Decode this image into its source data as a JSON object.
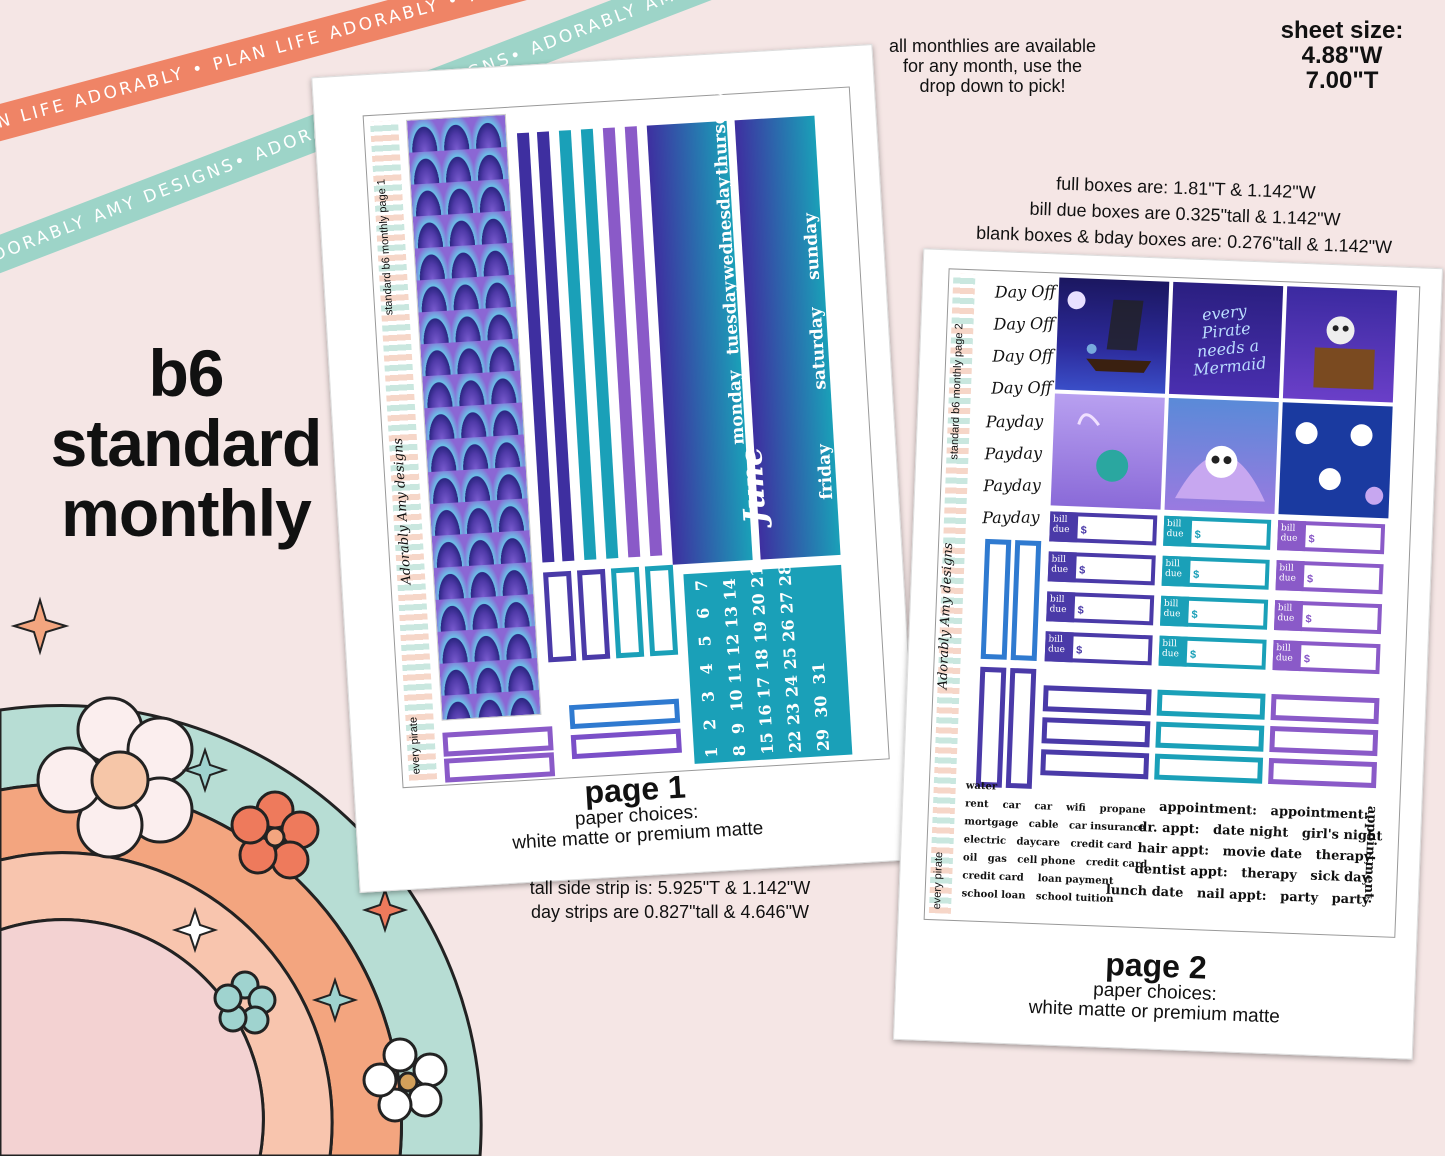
{
  "ribbons": {
    "top": "PLAN LIFE ADORABLY • PLAN LIFE ADORABLY • PLAN LIFE ADORABLY",
    "second": "ADORABLY AMY DESIGNS• ADORABLY AMY DESIGNS• ADORABLY AMY DESIGNS"
  },
  "product_title": [
    "b6",
    "standard",
    "monthly"
  ],
  "availability_note": [
    "all monthlies are available",
    "for any month, use the",
    "drop down to pick!"
  ],
  "sheet_size": {
    "label": "sheet size:",
    "width": "4.88\"W",
    "height": "7.00\"T"
  },
  "dimensions_note": [
    "full boxes are: 1.81\"T & 1.142\"W",
    "bill due boxes are 0.325\"tall & 1.142\"W",
    "blank boxes & bday boxes are: 0.276\"tall & 1.142\"W"
  ],
  "page1": {
    "side_label": "standard b6 monthly page 1",
    "theme_label": "every pirate",
    "brand_script": "Adorably Amy designs",
    "month_script": "June",
    "days_left": [
      "monday",
      "tuesday",
      "wednesday",
      "thursday"
    ],
    "days_right": [
      "friday",
      "saturday",
      "sunday"
    ],
    "calendar_rows": [
      [
        "1",
        "2",
        "3",
        "4",
        "5",
        "6",
        "7"
      ],
      [
        "8",
        "9",
        "10",
        "11",
        "12",
        "13",
        "14"
      ],
      [
        "15",
        "16",
        "17",
        "18",
        "19",
        "20",
        "21"
      ],
      [
        "22",
        "23",
        "24",
        "25",
        "26",
        "27",
        "28"
      ],
      [
        "29",
        "30",
        "31"
      ]
    ],
    "caption": "page 1",
    "paper_label": "paper choices:",
    "paper_options": "white matte or premium matte",
    "strip_dims": [
      "tall side strip is: 5.925\"T & 1.142\"W",
      "day strips are 0.827\"tall & 4.646\"W"
    ]
  },
  "page2": {
    "side_label": "standard b6 monthly page 2",
    "theme_label": "every pirate",
    "brand_script": "Adorably Amy designs",
    "script_labels": [
      "Day Off",
      "Day Off",
      "Day Off",
      "Day Off",
      "Payday",
      "Payday",
      "Payday",
      "Payday"
    ],
    "art_text": "every Pirate needs a Mermaid",
    "bill_label": [
      "bill",
      "due"
    ],
    "bill_symbol": "$",
    "words_left": [
      [
        "water"
      ],
      [
        "rent",
        "car",
        "car",
        "wifi",
        "propane"
      ],
      [
        "mortgage",
        "cable",
        "car insurance"
      ],
      [
        "electric",
        "daycare",
        "credit card"
      ],
      [
        "oil",
        "gas",
        "cell phone",
        "credit card"
      ],
      [
        "credit card",
        "loan payment"
      ],
      [
        "school loan",
        "school tuition"
      ]
    ],
    "words_right": [
      [
        "appointment:",
        "appointment:"
      ],
      [
        "dr. appt:",
        "date night",
        "girl's night"
      ],
      [
        "hair appt:",
        "movie date",
        "therapy"
      ],
      [
        "dentist appt:",
        "therapy",
        "sick day"
      ],
      [
        "lunch date",
        "nail appt:",
        "party",
        "party"
      ]
    ],
    "vertical_word": "appointment:",
    "caption": "page 2",
    "paper_label": "paper choices:",
    "paper_options": "white matte or premium matte"
  },
  "colors": {
    "background": "#f5e6e5",
    "navy": "#4a3aa8",
    "teal": "#1aa0b8",
    "purple": "#8a5ac8",
    "coral": "#ef8466",
    "mint": "#9dd4c8"
  }
}
